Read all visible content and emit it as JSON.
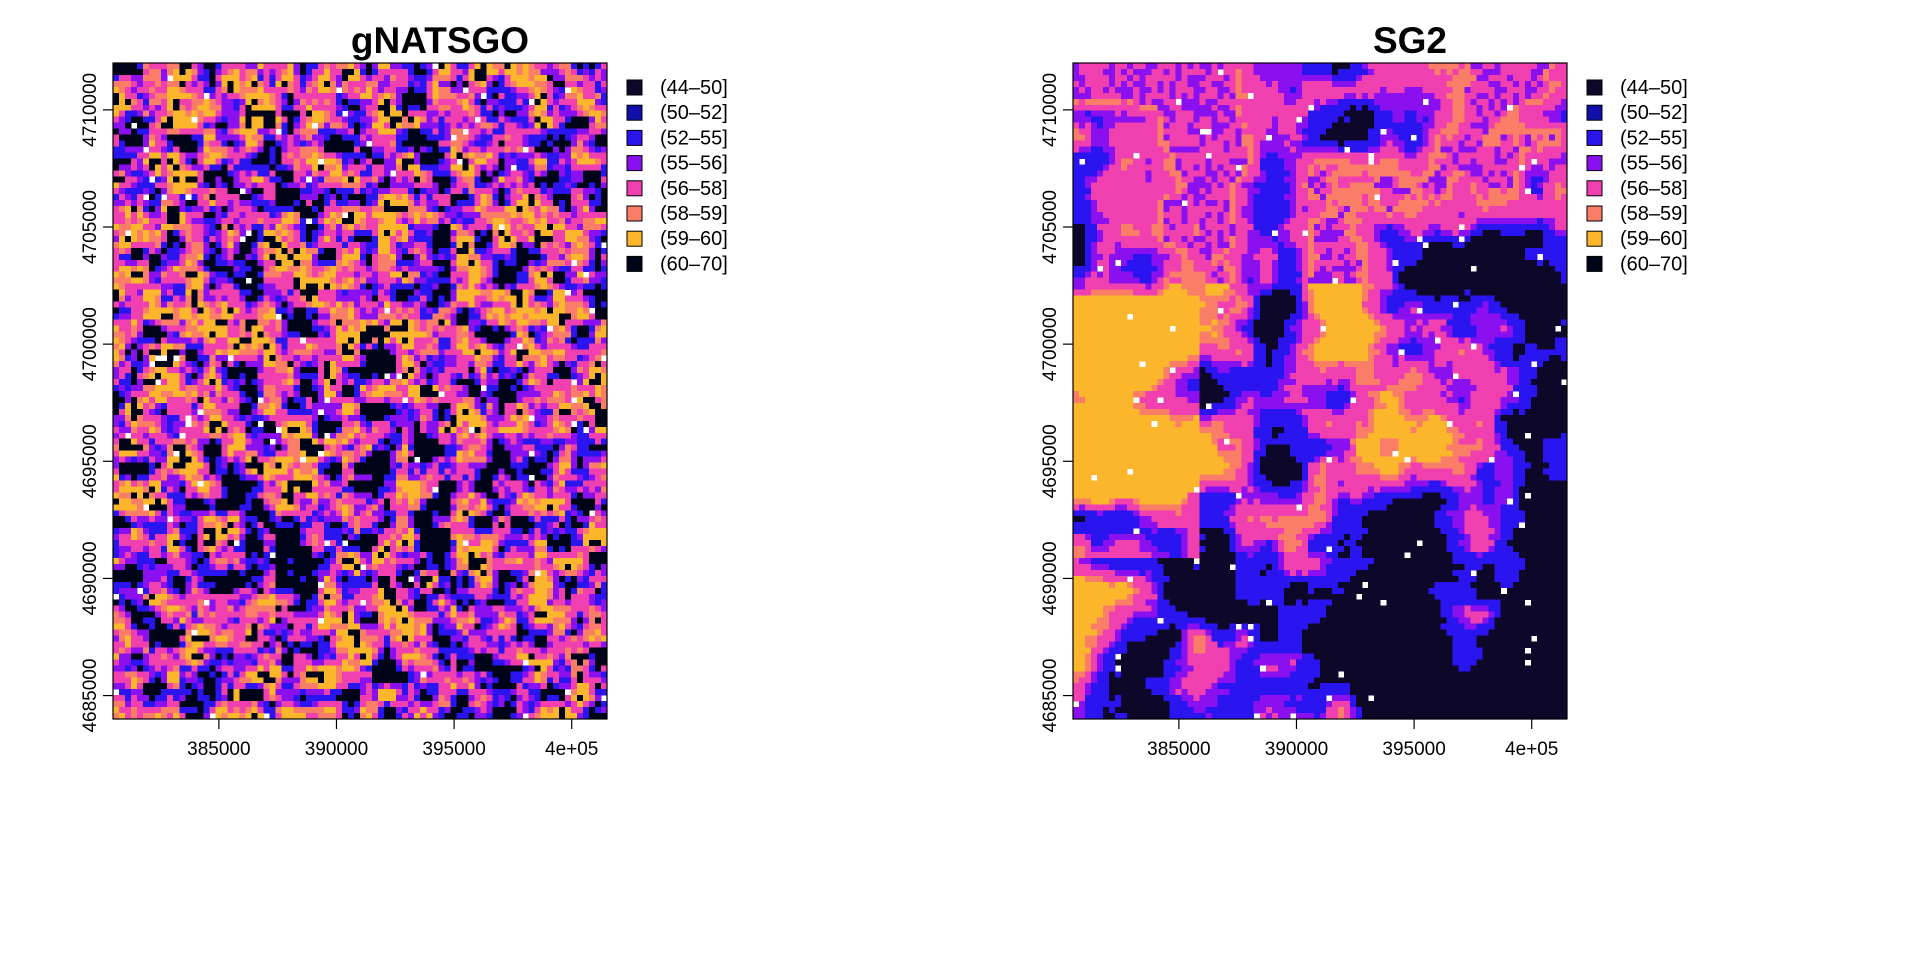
{
  "panels": [
    {
      "title": "gNATSGO",
      "pattern": "mixed",
      "x_ticks": [
        "385000",
        "390000",
        "395000",
        "4e+05"
      ],
      "y_ticks": [
        "4685000",
        "4690000",
        "4695000",
        "4700000",
        "4705000",
        "4710000"
      ]
    },
    {
      "title": "SG2",
      "pattern": "smooth",
      "x_ticks": [
        "385000",
        "390000",
        "395000",
        "4e+05"
      ],
      "y_ticks": [
        "4685000",
        "4690000",
        "4695000",
        "4700000",
        "4705000",
        "4710000"
      ]
    }
  ],
  "legend": {
    "classes": [
      {
        "label": "(44–50]",
        "color": "#0d0829"
      },
      {
        "label": "(50–52]",
        "color": "#1010a8"
      },
      {
        "label": "(52–55]",
        "color": "#2a14f0"
      },
      {
        "label": "(55–56]",
        "color": "#8a10f0"
      },
      {
        "label": "(56–58]",
        "color": "#f03fae"
      },
      {
        "label": "(58–59]",
        "color": "#fa7d68"
      },
      {
        "label": "(59–60]",
        "color": "#fbb62c"
      },
      {
        "label": "(60–70]",
        "color": "#000418"
      }
    ]
  },
  "x_axis": {
    "ticks": [
      385000,
      390000,
      395000,
      400000
    ]
  },
  "y_axis": {
    "ticks": [
      4685000,
      4690000,
      4695000,
      4700000,
      4705000,
      4710000
    ]
  }
}
